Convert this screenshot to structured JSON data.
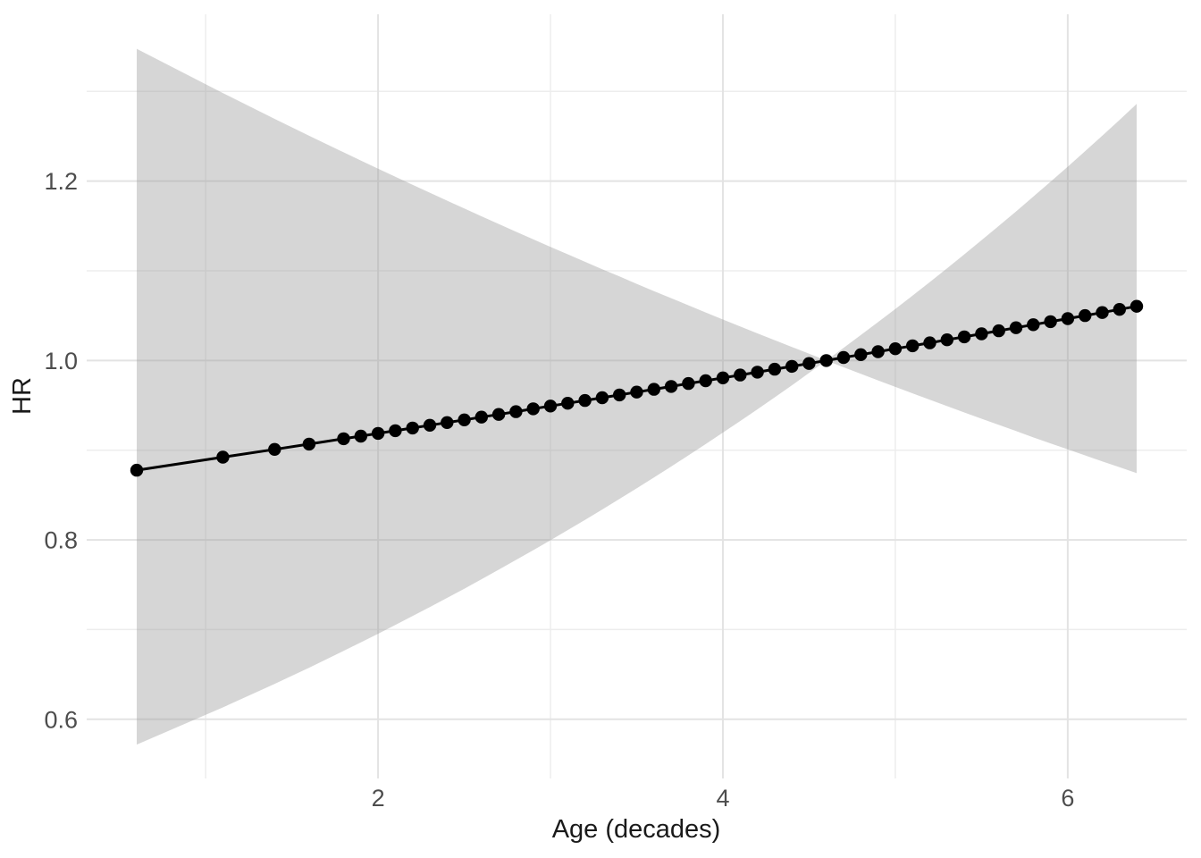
{
  "chart_data": {
    "type": "line",
    "title": "",
    "xlabel": "Age (decades)",
    "ylabel": "HR",
    "grid": true,
    "legend": "none",
    "xlim": [
      0.31,
      6.69
    ],
    "ylim": [
      0.534,
      1.386
    ],
    "x_ticks": [
      2,
      4,
      6
    ],
    "x_tick_labels": [
      "2",
      "4",
      "6"
    ],
    "x_minor_ticks": [
      1,
      3,
      5
    ],
    "y_ticks": [
      0.6,
      0.8,
      1.0,
      1.2
    ],
    "y_tick_labels": [
      "0.6",
      "0.8",
      "1.0",
      "1.2"
    ],
    "y_minor_ticks": [
      0.7,
      0.9,
      1.1,
      1.3
    ],
    "reference_age": 4.6,
    "x": [
      0.6,
      1.1,
      1.4,
      1.6,
      1.8,
      1.9,
      2.0,
      2.1,
      2.2,
      2.3,
      2.4,
      2.5,
      2.6,
      2.7,
      2.8,
      2.9,
      3.0,
      3.1,
      3.2,
      3.3,
      3.4,
      3.5,
      3.6,
      3.7,
      3.8,
      3.9,
      4.0,
      4.1,
      4.2,
      4.3,
      4.4,
      4.5,
      4.6,
      4.7,
      4.8,
      4.9,
      5.0,
      5.1,
      5.2,
      5.3,
      5.4,
      5.5,
      5.6,
      5.7,
      5.8,
      5.9,
      6.0,
      6.1,
      6.2,
      6.3,
      6.4
    ],
    "hr": [
      0.8777,
      0.8922,
      0.9009,
      0.9068,
      0.9128,
      0.9157,
      0.9187,
      0.9217,
      0.9247,
      0.9278,
      0.9308,
      0.9338,
      0.9369,
      0.9399,
      0.943,
      0.9461,
      0.9492,
      0.9523,
      0.9554,
      0.9585,
      0.9616,
      0.9648,
      0.9679,
      0.9711,
      0.9743,
      0.9774,
      0.9806,
      0.9838,
      0.987,
      0.9903,
      0.9935,
      0.9967,
      1.0,
      1.0033,
      1.0065,
      1.0098,
      1.0131,
      1.0164,
      1.0197,
      1.0231,
      1.0264,
      1.0298,
      1.0331,
      1.0365,
      1.0399,
      1.0433,
      1.0467,
      1.0501,
      1.0535,
      1.057,
      1.0604
    ],
    "ci_upper": [
      1.3475,
      1.2982,
      1.2694,
      1.2506,
      1.2321,
      1.223,
      1.2139,
      1.2049,
      1.1959,
      1.1871,
      1.1782,
      1.1695,
      1.1608,
      1.1522,
      1.1436,
      1.1352,
      1.1267,
      1.1184,
      1.1101,
      1.1018,
      1.0937,
      1.0855,
      1.0774,
      1.0695,
      1.0615,
      1.0536,
      1.0457,
      1.0379,
      1.0303,
      1.0227,
      1.0151,
      1.0075,
      1.0,
      1.0141,
      1.0284,
      1.0428,
      1.0575,
      1.0723,
      1.0875,
      1.1028,
      1.1183,
      1.1341,
      1.15,
      1.1662,
      1.1827,
      1.1993,
      1.2161,
      1.2333,
      1.2506,
      1.2682,
      1.2861
    ],
    "ci_lower": [
      0.5718,
      0.6132,
      0.6394,
      0.6575,
      0.6762,
      0.6857,
      0.6953,
      0.7051,
      0.7151,
      0.7251,
      0.7353,
      0.7456,
      0.7561,
      0.7668,
      0.7776,
      0.7885,
      0.7996,
      0.8109,
      0.8223,
      0.8338,
      0.8456,
      0.8575,
      0.8696,
      0.8818,
      0.8942,
      0.9068,
      0.9196,
      0.9325,
      0.9456,
      0.9589,
      0.9724,
      0.9861,
      1.0,
      0.9925,
      0.9852,
      0.9778,
      0.9706,
      0.9634,
      0.9563,
      0.9491,
      0.9421,
      0.9351,
      0.9282,
      0.9213,
      0.9143,
      0.9076,
      0.9009,
      0.8942,
      0.8876,
      0.881,
      0.8744
    ],
    "colors": {
      "line": "#000000",
      "point": "#000000",
      "ribbon_fill": "#999999",
      "ribbon_alpha": 0.4,
      "grid_major": "#e3e3e3",
      "grid_minor": "#ededed",
      "tick_label": "#4d4d4d",
      "axis_title": "#1a1a1a",
      "background": "#ffffff"
    }
  }
}
